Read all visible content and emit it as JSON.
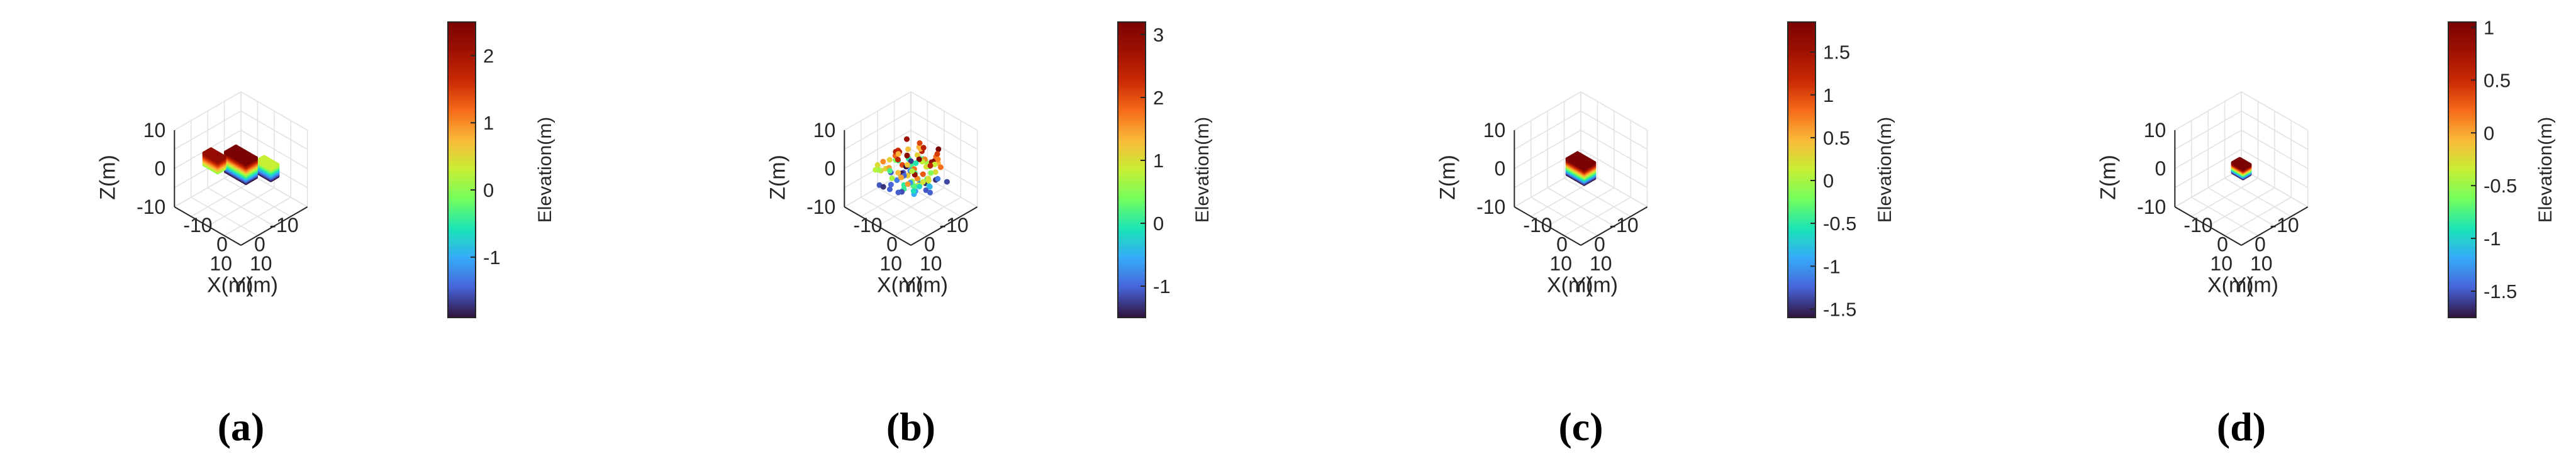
{
  "chart_data": [
    {
      "id": "a",
      "type": "scatter",
      "panel_label": "(a)",
      "xlabel": "X(m)",
      "ylabel": "Y(m)",
      "zlabel": "Z(m)",
      "xlim": [
        -10,
        10
      ],
      "ylim": [
        -10,
        10
      ],
      "zlim": [
        -10,
        10
      ],
      "x_ticks": [
        "-10",
        "0",
        "10"
      ],
      "y_ticks": [
        "-10",
        "0",
        "10"
      ],
      "z_ticks": [
        "10",
        "0",
        "-10"
      ],
      "grid": true,
      "colorbar": {
        "label": "Elevation(m)",
        "ticks": [
          "2",
          "1",
          "0",
          "-1"
        ],
        "range": [
          -1.9,
          2.5
        ],
        "tick_values": [
          2,
          1,
          0,
          -1
        ],
        "colormap": "turbo"
      },
      "clusters": [
        {
          "shape": "box",
          "center": [
            -4,
            4,
            0
          ],
          "size": [
            2,
            4,
            3
          ],
          "elev_range": [
            -1.9,
            0.3
          ]
        },
        {
          "shape": "box",
          "center": [
            0,
            0,
            1
          ],
          "size": [
            3,
            6,
            5
          ],
          "elev_range": [
            -1.9,
            2.5
          ]
        },
        {
          "shape": "box",
          "center": [
            4,
            -4,
            2
          ],
          "size": [
            2,
            4,
            3
          ],
          "elev_range": [
            0.0,
            2.2
          ]
        }
      ]
    },
    {
      "id": "b",
      "type": "scatter",
      "panel_label": "(b)",
      "xlabel": "X(m)",
      "ylabel": "Y(m)",
      "zlabel": "Z(m)",
      "xlim": [
        -10,
        10
      ],
      "ylim": [
        -10,
        10
      ],
      "zlim": [
        -10,
        10
      ],
      "x_ticks": [
        "-10",
        "0",
        "10"
      ],
      "y_ticks": [
        "-10",
        "0",
        "10"
      ],
      "z_ticks": [
        "10",
        "0",
        "-10"
      ],
      "grid": true,
      "colorbar": {
        "label": "Elevation(m)",
        "ticks": [
          "3",
          "2",
          "1",
          "0",
          "-1"
        ],
        "range": [
          -1.5,
          3.2
        ],
        "tick_values": [
          3,
          2,
          1,
          0,
          -1
        ],
        "colormap": "turbo"
      },
      "clusters": [
        {
          "shape": "sparse",
          "center": [
            0,
            0,
            0
          ],
          "size": [
            12,
            12,
            8
          ],
          "count": 110,
          "elev_range": [
            -1.5,
            3.2
          ]
        }
      ]
    },
    {
      "id": "c",
      "type": "scatter",
      "panel_label": "(c)",
      "xlabel": "X(m)",
      "ylabel": "Y(m)",
      "zlabel": "Z(m)",
      "xlim": [
        -10,
        10
      ],
      "ylim": [
        -10,
        10
      ],
      "zlim": [
        -10,
        10
      ],
      "x_ticks": [
        "-10",
        "0",
        "10"
      ],
      "y_ticks": [
        "-10",
        "0",
        "10"
      ],
      "z_ticks": [
        "10",
        "0",
        "-10"
      ],
      "grid": true,
      "colorbar": {
        "label": "Elevation(m)",
        "ticks": [
          "1.5",
          "1",
          "0.5",
          "0",
          "-0.5",
          "-1",
          "-1.5"
        ],
        "range": [
          -1.6,
          1.85
        ],
        "tick_values": [
          1.5,
          1,
          0.5,
          0,
          -0.5,
          -1,
          -1.5
        ],
        "colormap": "turbo"
      },
      "clusters": [
        {
          "shape": "box",
          "center": [
            0,
            0,
            0
          ],
          "size": [
            3,
            5,
            4
          ],
          "elev_range": [
            -1.6,
            1.85
          ]
        }
      ]
    },
    {
      "id": "d",
      "type": "scatter",
      "panel_label": "(d)",
      "xlabel": "X(m)",
      "ylabel": "Y(m)",
      "zlabel": "Z(m)",
      "xlim": [
        -10,
        10
      ],
      "ylim": [
        -10,
        10
      ],
      "zlim": [
        -10,
        10
      ],
      "x_ticks": [
        "-10",
        "0",
        "10"
      ],
      "y_ticks": [
        "-10",
        "0",
        "10"
      ],
      "z_ticks": [
        "10",
        "0",
        "-10"
      ],
      "grid": true,
      "colorbar": {
        "label": "Elevation(m)",
        "ticks": [
          "1",
          "0.5",
          "0",
          "-0.5",
          "-1",
          "-1.5"
        ],
        "range": [
          -1.75,
          1.05
        ],
        "tick_values": [
          1,
          0.5,
          0,
          -0.5,
          -1,
          -1.5
        ],
        "colormap": "turbo"
      },
      "clusters": [
        {
          "shape": "box",
          "center": [
            0,
            0,
            0
          ],
          "size": [
            2,
            3,
            2.5
          ],
          "elev_range": [
            -1.75,
            1.05
          ]
        }
      ]
    }
  ]
}
